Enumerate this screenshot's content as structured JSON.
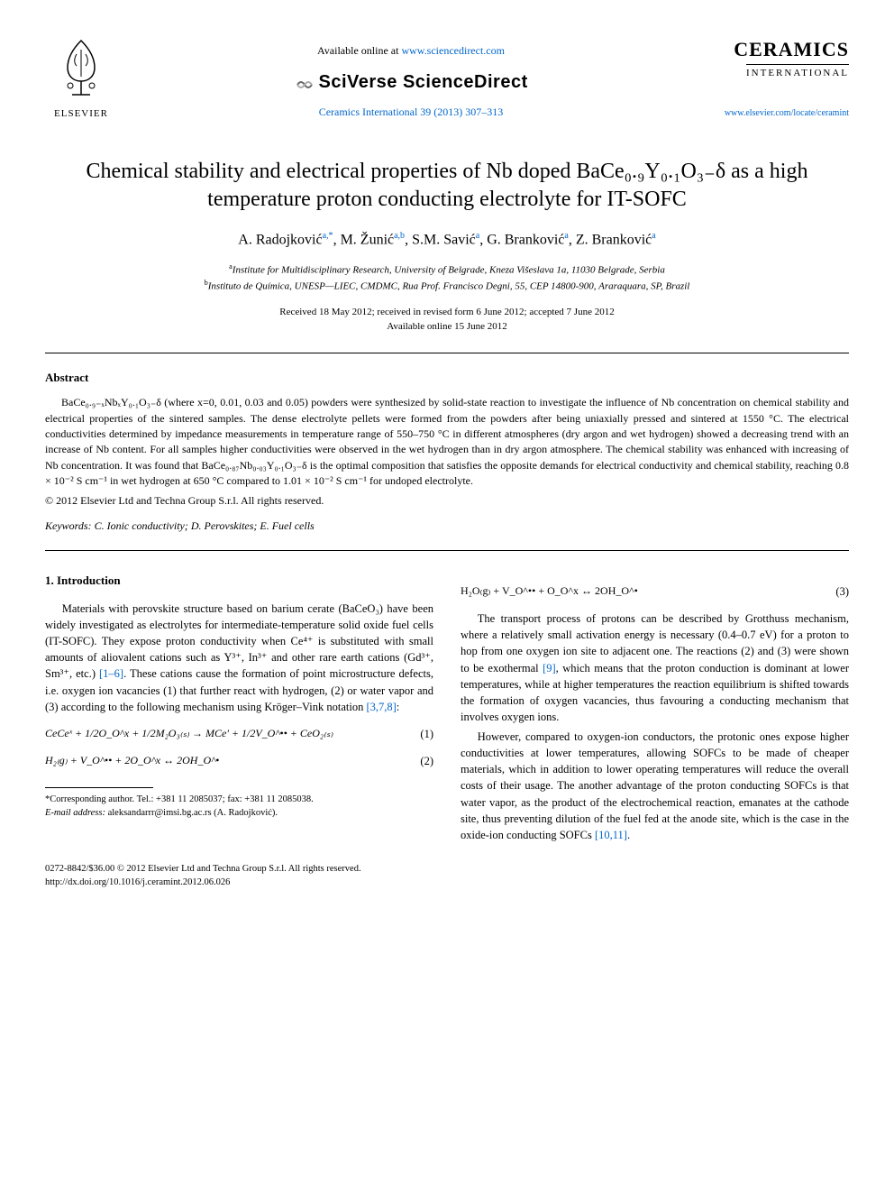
{
  "header": {
    "available_text": "Available online at ",
    "available_url": "www.sciencedirect.com",
    "sciverse": "SciVerse ScienceDirect",
    "journal_citation": "Ceramics International 39 (2013) 307–313",
    "elsevier_label": "ELSEVIER",
    "ceramics_title": "CERAMICS",
    "ceramics_sub": "INTERNATIONAL",
    "journal_url": "www.elsevier.com/locate/ceramint"
  },
  "title": "Chemical stability and electrical properties of Nb doped BaCe₀.₉Y₀.₁O₃₋δ as a high temperature proton conducting electrolyte for IT-SOFC",
  "authors_html": "A. Radojković<sup>a,*</sup>, M. Žunić<sup>a,b</sup>, S.M. Savić<sup>a</sup>, G. Branković<sup>a</sup>, Z. Branković<sup>a</sup>",
  "affiliations": {
    "a": "Institute for Multidisciplinary Research, University of Belgrade, Kneza Višeslava 1a, 11030 Belgrade, Serbia",
    "b": "Instituto de Química, UNESP—LIEC, CMDMC, Rua Prof. Francisco Degni, 55, CEP 14800-900, Araraquara, SP, Brazil"
  },
  "dates": {
    "line1": "Received 18 May 2012; received in revised form 6 June 2012; accepted 7 June 2012",
    "line2": "Available online 15 June 2012"
  },
  "abstract": {
    "heading": "Abstract",
    "body": "BaCe₀.₉₋ₓNbₓY₀.₁O₃₋δ (where x=0, 0.01, 0.03 and 0.05) powders were synthesized by solid-state reaction to investigate the influence of Nb concentration on chemical stability and electrical properties of the sintered samples. The dense electrolyte pellets were formed from the powders after being uniaxially pressed and sintered at 1550 °C. The electrical conductivities determined by impedance measurements in temperature range of 550–750 °C in different atmospheres (dry argon and wet hydrogen) showed a decreasing trend with an increase of Nb content. For all samples higher conductivities were observed in the wet hydrogen than in dry argon atmosphere. The chemical stability was enhanced with increasing of Nb concentration. It was found that BaCe₀.₈₇Nb₀.₀₃Y₀.₁O₃₋δ is the optimal composition that satisfies the opposite demands for electrical conductivity and chemical stability, reaching 0.8 × 10⁻² S cm⁻¹ in wet hydrogen at 650 °C compared to 1.01 × 10⁻² S cm⁻¹ for undoped electrolyte.",
    "copyright": "© 2012 Elsevier Ltd and Techna Group S.r.l. All rights reserved."
  },
  "keywords": {
    "label": "Keywords:",
    "text": " C. Ionic conductivity; D. Perovskites; E. Fuel cells"
  },
  "section1": {
    "heading": "1.  Introduction",
    "p1_a": "Materials with perovskite structure based on barium cerate (BaCeO₃) have been widely investigated as electrolytes for intermediate-temperature solid oxide fuel cells (IT-SOFC). They expose proton conductivity when Ce⁴⁺ is substituted with small amounts of aliovalent cations such as Y³⁺, In³⁺ and other rare earth cations (Gd³⁺, Sm³⁺, etc.) ",
    "p1_ref1": "[1–6]",
    "p1_b": ". These cations cause the formation of point microstructure defects, i.e. oxygen ion vacancies (1) that further react with hydrogen, (2) or water vapor and (3) according to the following mechanism using Kröger–Vink notation ",
    "p1_ref2": "[3,7,8]",
    "p1_c": ":",
    "eq1": "CeCeˣ + 1/2O_O^x + 1/2M₂O₃₍ₛ₎ → MCe' + 1/2V_O^•• + CeO₂₍ₛ₎",
    "eq1_num": "(1)",
    "eq2": "H₂₍g₎ + V_O^•• + 2O_O^x ↔ 2OH_O^•",
    "eq2_num": "(2)",
    "eq3": "H₂O₍g₎ + V_O^•• + O_O^x ↔ 2OH_O^•",
    "eq3_num": "(3)",
    "p2_a": "The transport process of protons can be described by Grotthuss mechanism, where a relatively small activation energy is necessary (0.4–0.7 eV) for a proton to hop from one oxygen ion site to adjacent one. The reactions (2) and (3) were shown to be exothermal ",
    "p2_ref": "[9]",
    "p2_b": ", which means that the proton conduction is dominant at lower temperatures, while at higher temperatures the reaction equilibrium is shifted towards the formation of oxygen vacancies, thus favouring a conducting mechanism that involves oxygen ions.",
    "p3_a": "However, compared to oxygen-ion conductors, the protonic ones expose higher conductivities at lower temperatures, allowing SOFCs to be made of cheaper materials, which in addition to lower operating temperatures will reduce the overall costs of their usage. The another advantage of the proton conducting SOFCs is that water vapor, as the product of the electrochemical reaction, emanates at the cathode site, thus preventing dilution of the fuel fed at the anode site, which is the case in the oxide-ion conducting SOFCs ",
    "p3_ref": "[10,11]",
    "p3_b": "."
  },
  "footnote": {
    "corr": "*Corresponding author. Tel.: +381 11 2085037; fax: +381 11 2085038.",
    "email_label": "E-mail address:",
    "email": " aleksandarrr@imsi.bg.ac.rs (A. Radojković)."
  },
  "footer": {
    "line1": "0272-8842/$36.00 © 2012 Elsevier Ltd and Techna Group S.r.l. All rights reserved.",
    "line2": "http://dx.doi.org/10.1016/j.ceramint.2012.06.026"
  },
  "colors": {
    "link": "#0066cc",
    "text": "#000000",
    "background": "#ffffff"
  }
}
